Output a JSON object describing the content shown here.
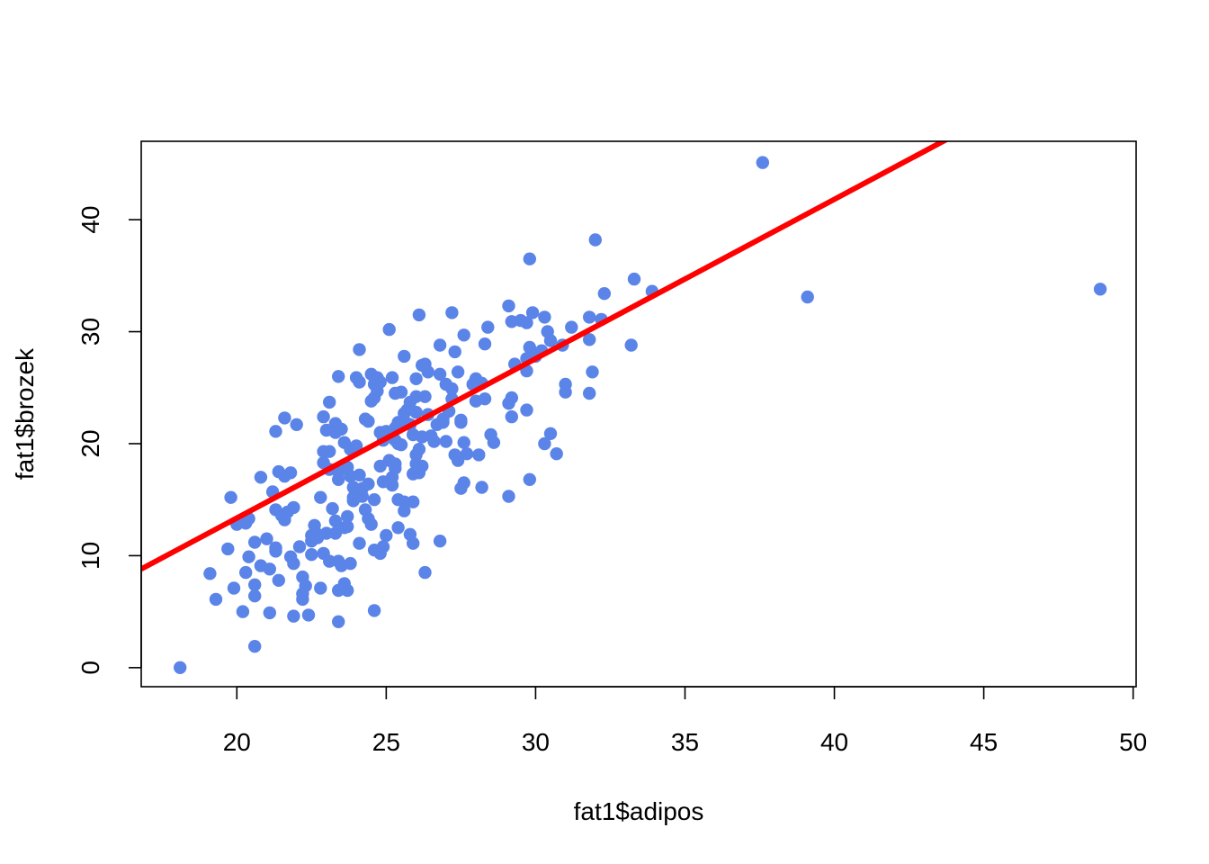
{
  "chart_data": {
    "type": "scatter",
    "title": "",
    "xlabel": "fat1$adipos",
    "ylabel": "fat1$brozek",
    "xlim": [
      16.8,
      50.1
    ],
    "ylim": [
      -1.7,
      47.0
    ],
    "x_ticks": [
      20,
      25,
      30,
      35,
      40,
      45,
      50
    ],
    "y_ticks": [
      0,
      10,
      20,
      30,
      40
    ],
    "grid": false,
    "legend": "none",
    "point_color": "#5B84E8",
    "line_color": "#FF0000",
    "fit_line": {
      "intercept": -15.1,
      "slope": 1.423
    },
    "points": [
      [
        18.1,
        0.0
      ],
      [
        19.1,
        8.4
      ],
      [
        19.3,
        6.1
      ],
      [
        19.7,
        10.6
      ],
      [
        19.8,
        15.2
      ],
      [
        19.9,
        7.1
      ],
      [
        20.0,
        12.8
      ],
      [
        20.2,
        5.0
      ],
      [
        20.3,
        12.9
      ],
      [
        20.3,
        8.5
      ],
      [
        20.4,
        13.3
      ],
      [
        20.4,
        9.9
      ],
      [
        20.6,
        1.9
      ],
      [
        20.6,
        11.2
      ],
      [
        20.6,
        7.4
      ],
      [
        20.6,
        6.4
      ],
      [
        20.8,
        17.0
      ],
      [
        20.8,
        9.1
      ],
      [
        21.0,
        11.5
      ],
      [
        21.1,
        4.9
      ],
      [
        21.1,
        8.8
      ],
      [
        21.2,
        15.7
      ],
      [
        21.3,
        21.1
      ],
      [
        21.3,
        14.1
      ],
      [
        21.3,
        10.7
      ],
      [
        21.3,
        10.4
      ],
      [
        21.4,
        17.5
      ],
      [
        21.4,
        7.8
      ],
      [
        21.5,
        13.6
      ],
      [
        21.6,
        22.3
      ],
      [
        21.6,
        17.1
      ],
      [
        21.6,
        13.2
      ],
      [
        21.7,
        13.9
      ],
      [
        21.8,
        17.4
      ],
      [
        21.8,
        9.9
      ],
      [
        21.9,
        14.3
      ],
      [
        21.9,
        9.3
      ],
      [
        21.9,
        4.6
      ],
      [
        22.0,
        21.7
      ],
      [
        22.1,
        10.8
      ],
      [
        22.2,
        8.1
      ],
      [
        22.2,
        6.6
      ],
      [
        22.2,
        6.1
      ],
      [
        22.3,
        7.3
      ],
      [
        22.4,
        4.7
      ],
      [
        22.5,
        11.8
      ],
      [
        22.5,
        11.3
      ],
      [
        22.5,
        10.1
      ],
      [
        22.6,
        12.7
      ],
      [
        22.7,
        11.9
      ],
      [
        22.7,
        11.6
      ],
      [
        22.8,
        15.2
      ],
      [
        22.8,
        7.1
      ],
      [
        22.9,
        22.4
      ],
      [
        22.9,
        19.3
      ],
      [
        22.9,
        18.3
      ],
      [
        22.9,
        10.2
      ],
      [
        23.0,
        21.2
      ],
      [
        23.0,
        12.0
      ],
      [
        23.1,
        23.7
      ],
      [
        23.1,
        19.3
      ],
      [
        23.1,
        17.7
      ],
      [
        23.1,
        9.5
      ],
      [
        23.2,
        14.2
      ],
      [
        23.3,
        21.8
      ],
      [
        23.3,
        21.0
      ],
      [
        23.3,
        13.1
      ],
      [
        23.3,
        12.0
      ],
      [
        23.4,
        26.0
      ],
      [
        23.4,
        17.5
      ],
      [
        23.4,
        16.8
      ],
      [
        23.4,
        9.5
      ],
      [
        23.4,
        6.9
      ],
      [
        23.4,
        4.1
      ],
      [
        23.5,
        21.3
      ],
      [
        23.5,
        9.1
      ],
      [
        23.6,
        20.1
      ],
      [
        23.6,
        12.5
      ],
      [
        23.6,
        7.5
      ],
      [
        23.7,
        17.9
      ],
      [
        23.7,
        13.5
      ],
      [
        23.7,
        12.6
      ],
      [
        23.7,
        6.9
      ],
      [
        23.8,
        19.5
      ],
      [
        23.8,
        17.1
      ],
      [
        23.8,
        9.3
      ],
      [
        23.9,
        16.1
      ],
      [
        23.9,
        15.2
      ],
      [
        23.9,
        14.9
      ],
      [
        24.0,
        25.9
      ],
      [
        24.0,
        19.8
      ],
      [
        24.1,
        28.4
      ],
      [
        24.1,
        25.5
      ],
      [
        24.1,
        17.2
      ],
      [
        24.1,
        11.1
      ],
      [
        24.2,
        16.0
      ],
      [
        24.2,
        15.3
      ],
      [
        24.3,
        22.2
      ],
      [
        24.3,
        14.1
      ],
      [
        24.4,
        22.0
      ],
      [
        24.4,
        16.4
      ],
      [
        24.4,
        13.3
      ],
      [
        24.5,
        26.2
      ],
      [
        24.5,
        23.8
      ],
      [
        24.5,
        12.8
      ],
      [
        24.6,
        25.3
      ],
      [
        24.6,
        24.1
      ],
      [
        24.6,
        15.0
      ],
      [
        24.6,
        10.5
      ],
      [
        24.6,
        5.1
      ],
      [
        24.7,
        25.9
      ],
      [
        24.7,
        24.7
      ],
      [
        24.8,
        25.5
      ],
      [
        24.8,
        21.0
      ],
      [
        24.8,
        18.0
      ],
      [
        24.8,
        10.2
      ],
      [
        24.9,
        20.3
      ],
      [
        24.9,
        16.6
      ],
      [
        24.9,
        10.8
      ],
      [
        25.0,
        21.1
      ],
      [
        25.0,
        11.8
      ],
      [
        25.1,
        30.2
      ],
      [
        25.1,
        18.5
      ],
      [
        25.2,
        25.9
      ],
      [
        25.2,
        17.0
      ],
      [
        25.2,
        16.3
      ],
      [
        25.3,
        24.5
      ],
      [
        25.3,
        21.4
      ],
      [
        25.3,
        20.3
      ],
      [
        25.3,
        17.8
      ],
      [
        25.3,
        18.2
      ],
      [
        25.4,
        21.9
      ],
      [
        25.4,
        20.0
      ],
      [
        25.4,
        15.0
      ],
      [
        25.4,
        12.5
      ],
      [
        25.5,
        24.6
      ],
      [
        25.5,
        19.9
      ],
      [
        25.6,
        27.8
      ],
      [
        25.6,
        22.7
      ],
      [
        25.6,
        14.8
      ],
      [
        25.6,
        14.0
      ],
      [
        25.7,
        23.0
      ],
      [
        25.7,
        21.8
      ],
      [
        25.8,
        23.7
      ],
      [
        25.8,
        21.7
      ],
      [
        25.8,
        11.9
      ],
      [
        25.9,
        20.8
      ],
      [
        25.9,
        17.3
      ],
      [
        25.9,
        14.8
      ],
      [
        25.9,
        11.1
      ],
      [
        26.0,
        25.8
      ],
      [
        26.0,
        24.2
      ],
      [
        26.0,
        22.8
      ],
      [
        26.0,
        19.0
      ],
      [
        26.0,
        18.2
      ],
      [
        26.1,
        31.5
      ],
      [
        26.1,
        19.5
      ],
      [
        26.1,
        17.6
      ],
      [
        26.1,
        17.4
      ],
      [
        26.2,
        27.0
      ],
      [
        26.2,
        20.6
      ],
      [
        26.2,
        18.0
      ],
      [
        26.3,
        27.1
      ],
      [
        26.3,
        24.2
      ],
      [
        26.3,
        8.5
      ],
      [
        26.4,
        26.4
      ],
      [
        26.4,
        22.6
      ],
      [
        26.5,
        20.7
      ],
      [
        26.6,
        20.2
      ],
      [
        26.7,
        21.7
      ],
      [
        26.8,
        28.8
      ],
      [
        26.8,
        26.2
      ],
      [
        26.8,
        11.3
      ],
      [
        26.9,
        22.2
      ],
      [
        26.9,
        21.9
      ],
      [
        27.0,
        25.3
      ],
      [
        27.0,
        20.2
      ],
      [
        27.1,
        22.9
      ],
      [
        27.2,
        31.7
      ],
      [
        27.2,
        24.9
      ],
      [
        27.2,
        24.0
      ],
      [
        27.3,
        28.2
      ],
      [
        27.3,
        19.0
      ],
      [
        27.4,
        26.4
      ],
      [
        27.4,
        18.5
      ],
      [
        27.5,
        21.9
      ],
      [
        27.5,
        22.1
      ],
      [
        27.5,
        16.0
      ],
      [
        27.6,
        29.7
      ],
      [
        27.6,
        20.1
      ],
      [
        27.6,
        16.5
      ],
      [
        27.7,
        19.1
      ],
      [
        27.9,
        25.3
      ],
      [
        28.0,
        25.8
      ],
      [
        28.0,
        23.8
      ],
      [
        28.1,
        25.3
      ],
      [
        28.1,
        19.0
      ],
      [
        28.2,
        25.4
      ],
      [
        28.2,
        16.1
      ],
      [
        28.3,
        28.9
      ],
      [
        28.3,
        24.0
      ],
      [
        28.4,
        30.4
      ],
      [
        28.5,
        20.8
      ],
      [
        28.6,
        20.1
      ],
      [
        29.1,
        32.3
      ],
      [
        29.1,
        23.6
      ],
      [
        29.1,
        15.3
      ],
      [
        29.2,
        30.9
      ],
      [
        29.2,
        24.1
      ],
      [
        29.2,
        22.4
      ],
      [
        29.3,
        27.1
      ],
      [
        29.5,
        31.0
      ],
      [
        29.7,
        30.8
      ],
      [
        29.7,
        27.6
      ],
      [
        29.7,
        26.5
      ],
      [
        29.7,
        23.0
      ],
      [
        29.8,
        36.5
      ],
      [
        29.8,
        28.6
      ],
      [
        29.8,
        16.8
      ],
      [
        29.9,
        31.7
      ],
      [
        30.0,
        27.8
      ],
      [
        30.2,
        28.3
      ],
      [
        30.3,
        31.3
      ],
      [
        30.3,
        20.0
      ],
      [
        30.4,
        30.0
      ],
      [
        30.5,
        29.2
      ],
      [
        30.5,
        20.9
      ],
      [
        30.7,
        19.1
      ],
      [
        30.9,
        28.8
      ],
      [
        31.0,
        25.3
      ],
      [
        31.0,
        24.6
      ],
      [
        31.2,
        30.4
      ],
      [
        31.8,
        31.3
      ],
      [
        31.8,
        29.3
      ],
      [
        31.8,
        24.5
      ],
      [
        31.9,
        26.4
      ],
      [
        32.0,
        38.2
      ],
      [
        32.2,
        31.1
      ],
      [
        32.3,
        33.4
      ],
      [
        33.2,
        28.8
      ],
      [
        33.3,
        34.7
      ],
      [
        33.9,
        33.6
      ],
      [
        37.6,
        45.1
      ],
      [
        39.1,
        33.1
      ],
      [
        48.9,
        33.8
      ]
    ]
  }
}
